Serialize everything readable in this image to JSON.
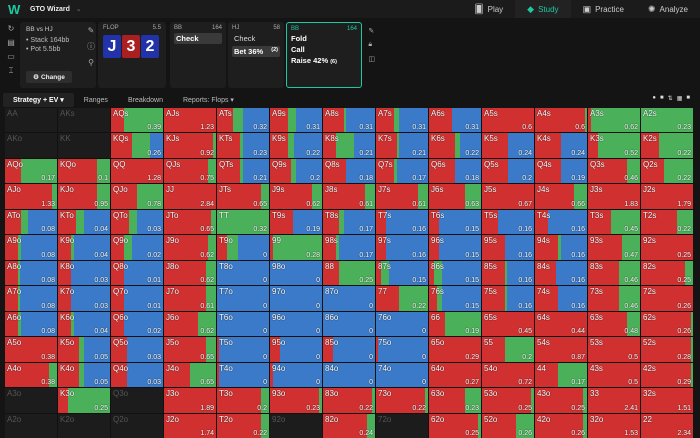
{
  "topbar": {
    "logo": "W",
    "app_name": "GTO Wizard",
    "nav": [
      {
        "label": "Play",
        "icon": "cards-icon"
      },
      {
        "label": "Study",
        "icon": "graduation-cap-icon",
        "active": true
      },
      {
        "label": "Practice",
        "icon": "gamepad-icon"
      },
      {
        "label": "Analyze",
        "icon": "lightbulb-icon"
      }
    ]
  },
  "info": {
    "title": "BB vs HJ",
    "stack": "• Stack 164bb",
    "pot": "• Pot 5.5bb",
    "change_label": "Change"
  },
  "flop": {
    "label": "FLOP",
    "pot": "5.5",
    "cards": [
      {
        "rank": "J",
        "color": "#2233aa"
      },
      {
        "rank": "3",
        "color": "#aa1f1f"
      },
      {
        "rank": "2",
        "color": "#2233aa"
      }
    ]
  },
  "bb1": {
    "pos": "BB",
    "stack": "164",
    "options": [
      {
        "label": "Check",
        "selected": true
      }
    ]
  },
  "hj": {
    "pos": "HJ",
    "stack": "58",
    "options": [
      {
        "label": "Check"
      },
      {
        "label": "Bet 36%",
        "count": "(2)",
        "selected": true
      }
    ]
  },
  "bb2": {
    "pos": "BB",
    "stack": "164",
    "options": [
      {
        "label": "Fold"
      },
      {
        "label": "Call"
      },
      {
        "label": "Raise 42%",
        "count": "(6)"
      }
    ]
  },
  "tabs": [
    {
      "label": "Strategy + EV ▾",
      "active": true
    },
    {
      "label": "Ranges"
    },
    {
      "label": "Breakdown"
    },
    {
      "label": "Reports: Flops ▾"
    }
  ],
  "colors": {
    "raise": "#d03030",
    "call": "#4ab05a",
    "fold": "#3a7ac8",
    "accent": "#1ec8a0"
  },
  "grid": [
    [
      [
        "AA",
        "",
        null
      ],
      [
        "AKs",
        "",
        null
      ],
      [
        "AQs",
        "0.39",
        [
          25,
          75,
          0
        ]
      ],
      [
        "AJs",
        "1.23",
        [
          100,
          0,
          0
        ]
      ],
      [
        "ATs",
        "0.32",
        [
          30,
          20,
          50
        ]
      ],
      [
        "A9s",
        "0.31",
        [
          35,
          15,
          50
        ]
      ],
      [
        "A8s",
        "0.31",
        [
          40,
          5,
          55
        ]
      ],
      [
        "A7s",
        "0.31",
        [
          35,
          10,
          55
        ]
      ],
      [
        "A6s",
        "0.31",
        [
          45,
          0,
          55
        ]
      ],
      [
        "A5s",
        "0.6",
        [
          100,
          0,
          0
        ]
      ],
      [
        "A4s",
        "0.6",
        [
          97,
          3,
          0
        ]
      ],
      [
        "A3s",
        "0.62",
        [
          5,
          95,
          0
        ]
      ],
      [
        "A2s",
        "0.23",
        [
          0,
          100,
          0
        ]
      ]
    ],
    [
      [
        "AKo",
        "",
        null
      ],
      [
        "KK",
        "",
        null
      ],
      [
        "KQs",
        "0.26",
        [
          40,
          35,
          25
        ]
      ],
      [
        "KJs",
        "0.92",
        [
          95,
          5,
          0
        ]
      ],
      [
        "KTs",
        "0.23",
        [
          45,
          5,
          50
        ]
      ],
      [
        "K9s",
        "0.22",
        [
          35,
          12,
          53
        ]
      ],
      [
        "K8s",
        "0.21",
        [
          25,
          35,
          40
        ]
      ],
      [
        "K7s",
        "0.21",
        [
          40,
          5,
          55
        ]
      ],
      [
        "K6s",
        "0.22",
        [
          50,
          10,
          40
        ]
      ],
      [
        "K5s",
        "0.24",
        [
          50,
          0,
          50
        ]
      ],
      [
        "K4s",
        "0.24",
        [
          50,
          0,
          50
        ]
      ],
      [
        "K3s",
        "0.52",
        [
          20,
          80,
          0
        ]
      ],
      [
        "K2s",
        "0.22",
        [
          35,
          65,
          0
        ]
      ]
    ],
    [
      [
        "AQo",
        "0.17",
        [
          30,
          70,
          0
        ]
      ],
      [
        "KQo",
        "0.1",
        [
          75,
          25,
          0
        ]
      ],
      [
        "QQ",
        "1.28",
        [
          100,
          0,
          0
        ]
      ],
      [
        "QJs",
        "0.75",
        [
          85,
          15,
          0
        ]
      ],
      [
        "QTs",
        "0.21",
        [
          45,
          5,
          50
        ]
      ],
      [
        "Q9s",
        "0.2",
        [
          40,
          10,
          50
        ]
      ],
      [
        "Q8s",
        "0.18",
        [
          45,
          0,
          55
        ]
      ],
      [
        "Q7s",
        "0.17",
        [
          35,
          5,
          60
        ]
      ],
      [
        "Q6s",
        "0.18",
        [
          50,
          0,
          50
        ]
      ],
      [
        "Q5s",
        "0.2",
        [
          50,
          0,
          50
        ]
      ],
      [
        "Q4s",
        "0.19",
        [
          50,
          0,
          50
        ]
      ],
      [
        "Q3s",
        "0.46",
        [
          75,
          25,
          0
        ]
      ],
      [
        "Q2s",
        "0.22",
        [
          45,
          55,
          0
        ]
      ]
    ],
    [
      [
        "AJo",
        "1.33",
        [
          90,
          10,
          0
        ]
      ],
      [
        "KJo",
        "0.95",
        [
          75,
          25,
          0
        ]
      ],
      [
        "QJo",
        "0.78",
        [
          50,
          50,
          0
        ]
      ],
      [
        "JJ",
        "2.84",
        [
          100,
          0,
          0
        ]
      ],
      [
        "JTs",
        "0.65",
        [
          85,
          15,
          0
        ]
      ],
      [
        "J9s",
        "0.62",
        [
          80,
          20,
          0
        ]
      ],
      [
        "J8s",
        "0.61",
        [
          80,
          20,
          0
        ]
      ],
      [
        "J7s",
        "0.61",
        [
          80,
          20,
          0
        ]
      ],
      [
        "J6s",
        "0.63",
        [
          70,
          30,
          0
        ]
      ],
      [
        "J5s",
        "0.67",
        [
          100,
          0,
          0
        ]
      ],
      [
        "J4s",
        "0.66",
        [
          75,
          25,
          0
        ]
      ],
      [
        "J3s",
        "1.83",
        [
          100,
          0,
          0
        ]
      ],
      [
        "J2s",
        "1.79",
        [
          100,
          0,
          0
        ]
      ]
    ],
    [
      [
        "ATo",
        "0.08",
        [
          30,
          15,
          55
        ]
      ],
      [
        "KTo",
        "0.04",
        [
          35,
          15,
          50
        ]
      ],
      [
        "QTo",
        "0.03",
        [
          35,
          15,
          50
        ]
      ],
      [
        "JTo",
        "0.65",
        [
          90,
          10,
          0
        ]
      ],
      [
        "TT",
        "0.32",
        [
          0,
          100,
          0
        ]
      ],
      [
        "T9s",
        "0.19",
        [
          45,
          0,
          55
        ]
      ],
      [
        "T8s",
        "0.17",
        [
          30,
          10,
          60
        ]
      ],
      [
        "T7s",
        "0.16",
        [
          20,
          0,
          80
        ]
      ],
      [
        "T6s",
        "0.15",
        [
          20,
          0,
          80
        ]
      ],
      [
        "T5s",
        "0.16",
        [
          30,
          0,
          70
        ]
      ],
      [
        "T4s",
        "0.16",
        [
          25,
          0,
          75
        ]
      ],
      [
        "T3s",
        "0.45",
        [
          45,
          55,
          0
        ]
      ],
      [
        "T2s",
        "0.22",
        [
          70,
          30,
          0
        ]
      ]
    ],
    [
      [
        "A9o",
        "0.08",
        [
          25,
          5,
          70
        ]
      ],
      [
        "K9o",
        "0.04",
        [
          25,
          5,
          70
        ]
      ],
      [
        "Q9o",
        "0.02",
        [
          25,
          15,
          60
        ]
      ],
      [
        "J9o",
        "0.62",
        [
          85,
          15,
          0
        ]
      ],
      [
        "T9o",
        "0",
        [
          20,
          20,
          60
        ]
      ],
      [
        "99",
        "0.28",
        [
          5,
          95,
          0
        ]
      ],
      [
        "98s",
        "0.17",
        [
          25,
          5,
          70
        ]
      ],
      [
        "97s",
        "0.16",
        [
          20,
          0,
          80
        ]
      ],
      [
        "96s",
        "0.15",
        [
          20,
          0,
          80
        ]
      ],
      [
        "95s",
        "0.16",
        [
          45,
          0,
          55
        ]
      ],
      [
        "94s",
        "0.16",
        [
          45,
          5,
          50
        ]
      ],
      [
        "93s",
        "0.47",
        [
          65,
          35,
          0
        ]
      ],
      [
        "92s",
        "0.25",
        [
          100,
          0,
          0
        ]
      ]
    ],
    [
      [
        "A8o",
        "0.08",
        [
          25,
          3,
          72
        ]
      ],
      [
        "K8o",
        "0.03",
        [
          25,
          0,
          75
        ]
      ],
      [
        "Q8o",
        "0.01",
        [
          25,
          0,
          75
        ]
      ],
      [
        "J8o",
        "0.62",
        [
          80,
          20,
          0
        ]
      ],
      [
        "T8o",
        "0",
        [
          0,
          0,
          100
        ]
      ],
      [
        "98o",
        "0",
        [
          0,
          0,
          100
        ]
      ],
      [
        "88",
        "0.25",
        [
          30,
          70,
          0
        ]
      ],
      [
        "87s",
        "0.15",
        [
          10,
          15,
          75
        ]
      ],
      [
        "86s",
        "0.15",
        [
          10,
          15,
          75
        ]
      ],
      [
        "85s",
        "0.16",
        [
          45,
          3,
          52
        ]
      ],
      [
        "84s",
        "0.16",
        [
          40,
          0,
          60
        ]
      ],
      [
        "83s",
        "0.46",
        [
          60,
          40,
          0
        ]
      ],
      [
        "82s",
        "0.25",
        [
          85,
          15,
          0
        ]
      ]
    ],
    [
      [
        "A7o",
        "0.08",
        [
          25,
          3,
          72
        ]
      ],
      [
        "K7o",
        "0.03",
        [
          25,
          0,
          75
        ]
      ],
      [
        "Q7o",
        "0.01",
        [
          25,
          0,
          75
        ]
      ],
      [
        "J7o",
        "0.61",
        [
          80,
          20,
          0
        ]
      ],
      [
        "T7o",
        "0",
        [
          0,
          0,
          100
        ]
      ],
      [
        "97o",
        "0",
        [
          0,
          0,
          100
        ]
      ],
      [
        "87o",
        "0",
        [
          0,
          0,
          100
        ]
      ],
      [
        "77",
        "0.22",
        [
          45,
          55,
          0
        ]
      ],
      [
        "76s",
        "0.15",
        [
          15,
          10,
          75
        ]
      ],
      [
        "75s",
        "0.16",
        [
          45,
          3,
          52
        ]
      ],
      [
        "74s",
        "0.16",
        [
          45,
          0,
          55
        ]
      ],
      [
        "73s",
        "0.46",
        [
          60,
          40,
          0
        ]
      ],
      [
        "72s",
        "0.26",
        [
          100,
          0,
          0
        ]
      ]
    ],
    [
      [
        "A6o",
        "0.08",
        [
          25,
          5,
          70
        ]
      ],
      [
        "K6o",
        "0.04",
        [
          25,
          5,
          70
        ]
      ],
      [
        "Q6o",
        "0.02",
        [
          25,
          0,
          75
        ]
      ],
      [
        "J6o",
        "0.62",
        [
          65,
          35,
          0
        ]
      ],
      [
        "T6o",
        "0",
        [
          0,
          0,
          100
        ]
      ],
      [
        "96o",
        "0",
        [
          0,
          0,
          100
        ]
      ],
      [
        "86o",
        "0",
        [
          0,
          0,
          100
        ]
      ],
      [
        "76o",
        "0",
        [
          0,
          0,
          100
        ]
      ],
      [
        "66",
        "0.19",
        [
          30,
          70,
          0
        ]
      ],
      [
        "65s",
        "0.45",
        [
          100,
          0,
          0
        ]
      ],
      [
        "64s",
        "0.44",
        [
          100,
          0,
          0
        ]
      ],
      [
        "63s",
        "0.48",
        [
          75,
          25,
          0
        ]
      ],
      [
        "62s",
        "0.26",
        [
          97,
          3,
          0
        ]
      ]
    ],
    [
      [
        "A5o",
        "0.38",
        [
          100,
          0,
          0
        ]
      ],
      [
        "K5o",
        "0.05",
        [
          40,
          10,
          50
        ]
      ],
      [
        "Q5o",
        "0.03",
        [
          30,
          0,
          70
        ]
      ],
      [
        "J5o",
        "0.65",
        [
          80,
          20,
          0
        ]
      ],
      [
        "T5o",
        "0",
        [
          3,
          0,
          97
        ]
      ],
      [
        "95o",
        "0",
        [
          20,
          0,
          80
        ]
      ],
      [
        "85o",
        "0",
        [
          20,
          0,
          80
        ]
      ],
      [
        "75o",
        "0",
        [
          3,
          0,
          97
        ]
      ],
      [
        "65o",
        "0.29",
        [
          100,
          0,
          0
        ]
      ],
      [
        "55",
        "0.2",
        [
          45,
          55,
          0
        ]
      ],
      [
        "54s",
        "0.87",
        [
          100,
          0,
          0
        ]
      ],
      [
        "53s",
        "0.5",
        [
          100,
          0,
          0
        ]
      ],
      [
        "52s",
        "0.28",
        [
          97,
          3,
          0
        ]
      ]
    ],
    [
      [
        "A4o",
        "0.38",
        [
          85,
          15,
          0
        ]
      ],
      [
        "K4o",
        "0.05",
        [
          40,
          10,
          50
        ]
      ],
      [
        "Q4o",
        "0.03",
        [
          30,
          0,
          70
        ]
      ],
      [
        "J4o",
        "0.65",
        [
          50,
          50,
          0
        ]
      ],
      [
        "T4o",
        "0",
        [
          3,
          0,
          97
        ]
      ],
      [
        "94o",
        "0",
        [
          5,
          0,
          95
        ]
      ],
      [
        "84o",
        "0",
        [
          0,
          0,
          100
        ]
      ],
      [
        "74o",
        "0",
        [
          0,
          0,
          100
        ]
      ],
      [
        "64o",
        "0.27",
        [
          100,
          0,
          0
        ]
      ],
      [
        "54o",
        "0.72",
        [
          100,
          0,
          0
        ]
      ],
      [
        "44",
        "0.17",
        [
          45,
          55,
          0
        ]
      ],
      [
        "43s",
        "0.5",
        [
          100,
          0,
          0
        ]
      ],
      [
        "42s",
        "0.29",
        [
          97,
          3,
          0
        ]
      ]
    ],
    [
      [
        "A3o",
        "",
        null
      ],
      [
        "K3o",
        "0.25",
        [
          20,
          80,
          0
        ]
      ],
      [
        "Q3o",
        "",
        null
      ],
      [
        "J3o",
        "1.89",
        [
          100,
          0,
          0
        ]
      ],
      [
        "T3o",
        "0.2",
        [
          85,
          15,
          0
        ]
      ],
      [
        "93o",
        "0.23",
        [
          95,
          5,
          0
        ]
      ],
      [
        "83o",
        "0.22",
        [
          95,
          5,
          0
        ]
      ],
      [
        "73o",
        "0.22",
        [
          95,
          5,
          0
        ]
      ],
      [
        "63o",
        "0.23",
        [
          70,
          30,
          0
        ]
      ],
      [
        "53o",
        "0.25",
        [
          95,
          5,
          0
        ]
      ],
      [
        "43o",
        "0.25",
        [
          93,
          7,
          0
        ]
      ],
      [
        "33",
        "2.41",
        [
          100,
          0,
          0
        ]
      ],
      [
        "32s",
        "1.51",
        [
          100,
          0,
          0
        ]
      ]
    ],
    [
      [
        "A2o",
        "",
        null
      ],
      [
        "K2o",
        "",
        null
      ],
      [
        "Q2o",
        "",
        null
      ],
      [
        "J2o",
        "1.74",
        [
          100,
          0,
          0
        ]
      ],
      [
        "T2o",
        "0.22",
        [
          85,
          15,
          0
        ]
      ],
      [
        "92o",
        "",
        null
      ],
      [
        "82o",
        "0.24",
        [
          85,
          15,
          0
        ]
      ],
      [
        "72o",
        "",
        null
      ],
      [
        "62o",
        "0.25",
        [
          95,
          5,
          0
        ]
      ],
      [
        "52o",
        "0.26",
        [
          65,
          35,
          0
        ]
      ],
      [
        "42o",
        "0.26",
        [
          92,
          8,
          0
        ]
      ],
      [
        "32o",
        "1.53",
        [
          100,
          0,
          0
        ]
      ],
      [
        "22",
        "2.34",
        [
          100,
          0,
          0
        ]
      ]
    ]
  ]
}
